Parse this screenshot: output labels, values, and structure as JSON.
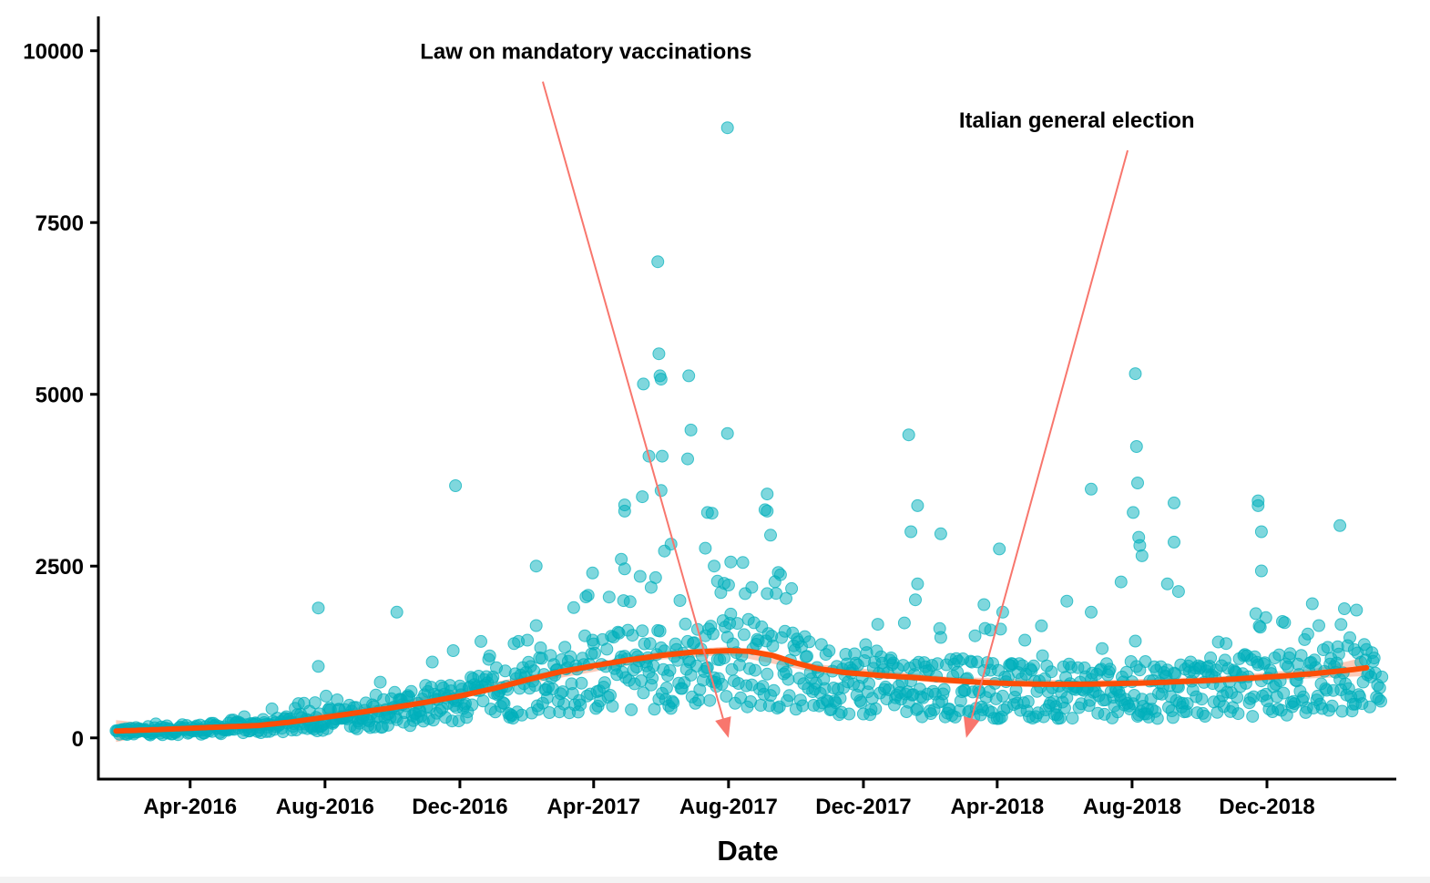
{
  "chart_data": {
    "type": "scatter",
    "title": "",
    "xlabel": "Date",
    "ylabel": "",
    "xlim": [
      "2016-01-09",
      "2019-03-28"
    ],
    "ylim": [
      -600,
      10500
    ],
    "x_ticks": [
      {
        "date": "2016-04-01",
        "label": "Apr-2016"
      },
      {
        "date": "2016-08-01",
        "label": "Aug-2016"
      },
      {
        "date": "2016-12-01",
        "label": "Dec-2016"
      },
      {
        "date": "2017-04-01",
        "label": "Apr-2017"
      },
      {
        "date": "2017-08-01",
        "label": "Aug-2017"
      },
      {
        "date": "2017-12-01",
        "label": "Dec-2017"
      },
      {
        "date": "2018-04-01",
        "label": "Apr-2018"
      },
      {
        "date": "2018-08-01",
        "label": "Aug-2018"
      },
      {
        "date": "2018-12-01",
        "label": "Dec-2018"
      }
    ],
    "y_ticks": [
      {
        "value": 0,
        "label": "0"
      },
      {
        "value": 2500,
        "label": "2500"
      },
      {
        "value": 5000,
        "label": "5000"
      },
      {
        "value": 7500,
        "label": "7500"
      },
      {
        "value": 10000,
        "label": "10000"
      }
    ],
    "grid": false,
    "point_color": "#00AFBB",
    "trend_color": "#FC4E07",
    "band_color": "#F9B9A3",
    "arrow_color": "#F8766D",
    "annotations": [
      {
        "text": "Law on mandatory vaccinations",
        "text_date": "2017-03-25",
        "text_value": 10000,
        "arrow_from_date": "2017-02-14",
        "arrow_from_value": 9550,
        "arrow_to_date": "2017-08-01",
        "arrow_to_value": 0
      },
      {
        "text": "Italian general election",
        "text_date": "2018-06-12",
        "text_value": 9000,
        "arrow_from_date": "2018-07-28",
        "arrow_from_value": 8550,
        "arrow_to_date": "2018-03-04",
        "arrow_to_value": 0
      }
    ],
    "trend": [
      {
        "x": "2016-01-25",
        "y": 100
      },
      {
        "x": "2016-03-01",
        "y": 120
      },
      {
        "x": "2016-04-01",
        "y": 140
      },
      {
        "x": "2016-05-01",
        "y": 160
      },
      {
        "x": "2016-06-01",
        "y": 180
      },
      {
        "x": "2016-07-01",
        "y": 230
      },
      {
        "x": "2016-08-01",
        "y": 300
      },
      {
        "x": "2016-09-01",
        "y": 370
      },
      {
        "x": "2016-10-01",
        "y": 440
      },
      {
        "x": "2016-11-01",
        "y": 520
      },
      {
        "x": "2016-12-01",
        "y": 610
      },
      {
        "x": "2017-01-01",
        "y": 720
      },
      {
        "x": "2017-02-01",
        "y": 850
      },
      {
        "x": "2017-03-01",
        "y": 960
      },
      {
        "x": "2017-04-01",
        "y": 1050
      },
      {
        "x": "2017-05-01",
        "y": 1130
      },
      {
        "x": "2017-06-01",
        "y": 1200
      },
      {
        "x": "2017-07-01",
        "y": 1250
      },
      {
        "x": "2017-08-01",
        "y": 1270
      },
      {
        "x": "2017-08-20",
        "y": 1260
      },
      {
        "x": "2017-09-10",
        "y": 1200
      },
      {
        "x": "2017-10-01",
        "y": 1090
      },
      {
        "x": "2017-10-20",
        "y": 1010
      },
      {
        "x": "2017-11-15",
        "y": 950
      },
      {
        "x": "2017-12-15",
        "y": 910
      },
      {
        "x": "2018-01-15",
        "y": 880
      },
      {
        "x": "2018-02-15",
        "y": 840
      },
      {
        "x": "2018-03-15",
        "y": 810
      },
      {
        "x": "2018-04-15",
        "y": 790
      },
      {
        "x": "2018-05-15",
        "y": 780
      },
      {
        "x": "2018-06-15",
        "y": 780
      },
      {
        "x": "2018-07-15",
        "y": 790
      },
      {
        "x": "2018-08-15",
        "y": 800
      },
      {
        "x": "2018-09-15",
        "y": 820
      },
      {
        "x": "2018-10-15",
        "y": 840
      },
      {
        "x": "2018-11-15",
        "y": 870
      },
      {
        "x": "2018-12-15",
        "y": 900
      },
      {
        "x": "2019-01-15",
        "y": 940
      },
      {
        "x": "2019-02-15",
        "y": 990
      },
      {
        "x": "2019-03-01",
        "y": 1020
      }
    ],
    "band": [
      {
        "x": "2016-01-25",
        "lo": -60,
        "hi": 260
      },
      {
        "x": "2016-03-01",
        "lo": 50,
        "hi": 190
      },
      {
        "x": "2016-06-01",
        "lo": 120,
        "hi": 240
      },
      {
        "x": "2016-10-01",
        "lo": 370,
        "hi": 510
      },
      {
        "x": "2017-02-01",
        "lo": 790,
        "hi": 910
      },
      {
        "x": "2017-06-01",
        "lo": 1140,
        "hi": 1260
      },
      {
        "x": "2017-08-01",
        "lo": 1210,
        "hi": 1330
      },
      {
        "x": "2017-10-20",
        "lo": 950,
        "hi": 1070
      },
      {
        "x": "2018-02-15",
        "lo": 790,
        "hi": 890
      },
      {
        "x": "2018-06-15",
        "lo": 730,
        "hi": 830
      },
      {
        "x": "2018-10-15",
        "lo": 790,
        "hi": 890
      },
      {
        "x": "2019-01-15",
        "lo": 870,
        "hi": 1010
      },
      {
        "x": "2019-03-01",
        "lo": 900,
        "hi": 1180
      }
    ],
    "highlight_points": [
      {
        "x": "2017-07-31",
        "y": 8880
      },
      {
        "x": "2017-05-29",
        "y": 6930
      },
      {
        "x": "2017-05-30",
        "y": 5590
      },
      {
        "x": "2017-05-31",
        "y": 5270
      },
      {
        "x": "2017-06-01",
        "y": 5220
      },
      {
        "x": "2017-05-16",
        "y": 5150
      },
      {
        "x": "2017-06-26",
        "y": 5270
      },
      {
        "x": "2017-06-28",
        "y": 4480
      },
      {
        "x": "2017-07-31",
        "y": 4430
      },
      {
        "x": "2017-06-25",
        "y": 4060
      },
      {
        "x": "2017-05-21",
        "y": 4100
      },
      {
        "x": "2017-06-02",
        "y": 4100
      },
      {
        "x": "2017-06-01",
        "y": 3600
      },
      {
        "x": "2017-05-15",
        "y": 3510
      },
      {
        "x": "2017-04-29",
        "y": 3390
      },
      {
        "x": "2017-04-29",
        "y": 3300
      },
      {
        "x": "2017-07-13",
        "y": 3280
      },
      {
        "x": "2017-07-17",
        "y": 3270
      },
      {
        "x": "2016-11-27",
        "y": 3670
      },
      {
        "x": "2016-07-26",
        "y": 1890
      },
      {
        "x": "2016-07-26",
        "y": 1040
      },
      {
        "x": "2016-10-05",
        "y": 1830
      },
      {
        "x": "2016-11-25",
        "y": 1270
      },
      {
        "x": "2017-02-08",
        "y": 2500
      },
      {
        "x": "2017-03-31",
        "y": 2400
      },
      {
        "x": "2017-08-22",
        "y": 2190
      },
      {
        "x": "2017-09-05",
        "y": 3550
      },
      {
        "x": "2017-09-03",
        "y": 3320
      },
      {
        "x": "2017-09-05",
        "y": 3300
      },
      {
        "x": "2017-09-08",
        "y": 2950
      },
      {
        "x": "2017-09-05",
        "y": 2100
      },
      {
        "x": "2017-09-22",
        "y": 2030
      },
      {
        "x": "2018-01-11",
        "y": 4410
      },
      {
        "x": "2018-01-19",
        "y": 3380
      },
      {
        "x": "2018-01-13",
        "y": 3000
      },
      {
        "x": "2018-02-09",
        "y": 2970
      },
      {
        "x": "2018-01-19",
        "y": 2240
      },
      {
        "x": "2018-01-17",
        "y": 2010
      },
      {
        "x": "2018-04-03",
        "y": 2750
      },
      {
        "x": "2018-03-20",
        "y": 1940
      },
      {
        "x": "2018-04-06",
        "y": 1830
      },
      {
        "x": "2018-03-26",
        "y": 1570
      },
      {
        "x": "2018-08-04",
        "y": 5300
      },
      {
        "x": "2018-08-05",
        "y": 4240
      },
      {
        "x": "2018-08-06",
        "y": 3710
      },
      {
        "x": "2018-08-07",
        "y": 2920
      },
      {
        "x": "2018-08-08",
        "y": 2800
      },
      {
        "x": "2018-08-10",
        "y": 2650
      },
      {
        "x": "2018-08-02",
        "y": 3280
      },
      {
        "x": "2018-07-22",
        "y": 2270
      },
      {
        "x": "2018-06-25",
        "y": 3620
      },
      {
        "x": "2018-06-03",
        "y": 1990
      },
      {
        "x": "2018-06-25",
        "y": 1830
      },
      {
        "x": "2018-09-08",
        "y": 3420
      },
      {
        "x": "2018-09-08",
        "y": 2850
      },
      {
        "x": "2018-09-12",
        "y": 2130
      },
      {
        "x": "2018-09-02",
        "y": 2240
      },
      {
        "x": "2018-11-23",
        "y": 3450
      },
      {
        "x": "2018-11-23",
        "y": 3380
      },
      {
        "x": "2018-11-26",
        "y": 3000
      },
      {
        "x": "2018-11-26",
        "y": 2430
      },
      {
        "x": "2018-11-30",
        "y": 1750
      },
      {
        "x": "2019-02-05",
        "y": 3090
      },
      {
        "x": "2019-02-06",
        "y": 1650
      },
      {
        "x": "2017-06-10",
        "y": 2820
      },
      {
        "x": "2017-07-11",
        "y": 2760
      },
      {
        "x": "2017-07-19",
        "y": 2500
      },
      {
        "x": "2017-07-22",
        "y": 2280
      },
      {
        "x": "2017-07-28",
        "y": 2250
      },
      {
        "x": "2017-08-03",
        "y": 2560
      },
      {
        "x": "2017-04-26",
        "y": 2600
      },
      {
        "x": "2017-04-29",
        "y": 2460
      },
      {
        "x": "2017-05-23",
        "y": 2190
      },
      {
        "x": "2017-06-04",
        "y": 2720
      }
    ],
    "dense_series": {
      "note": "Daily values following the trend band, listed as monthly windows",
      "windows": [
        {
          "from": "2016-01-25",
          "to": "2016-04-01",
          "low": 50,
          "high": 620
        },
        {
          "from": "2016-04-01",
          "to": "2016-08-01",
          "low": 60,
          "high": 730
        },
        {
          "from": "2016-08-01",
          "to": "2016-12-01",
          "low": 80,
          "high": 900
        },
        {
          "from": "2016-12-01",
          "to": "2017-04-01",
          "low": 90,
          "high": 1310
        },
        {
          "from": "2017-04-01",
          "to": "2017-08-01",
          "low": 120,
          "high": 2000
        },
        {
          "from": "2017-08-01",
          "to": "2017-12-01",
          "low": 200,
          "high": 1500
        },
        {
          "from": "2017-12-01",
          "to": "2018-04-01",
          "low": 150,
          "high": 1500
        },
        {
          "from": "2018-04-01",
          "to": "2018-08-01",
          "low": 170,
          "high": 1200
        },
        {
          "from": "2018-08-01",
          "to": "2018-12-01",
          "low": 300,
          "high": 1700
        },
        {
          "from": "2018-12-01",
          "to": "2019-03-01",
          "low": 190,
          "high": 1250
        }
      ]
    }
  }
}
